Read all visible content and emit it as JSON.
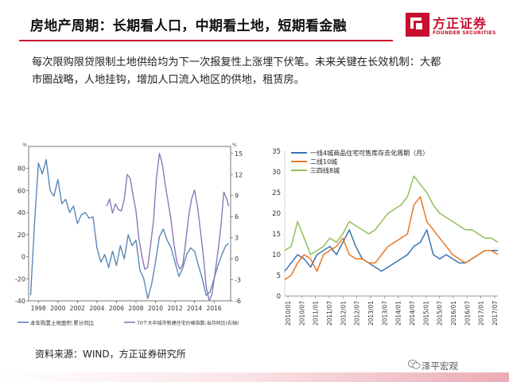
{
  "header": {
    "title": "房地产周期：长期看人口，中期看土地，短期看金融",
    "logo_name": "方正证券",
    "logo_sub": "FOUNDER SECURITIES",
    "brand_color": "#c8102e"
  },
  "body": {
    "line1": "每次限购限贷限制土地供给均为下一次报复性上涨埋下伏笔。未来关键在长效机制：大都",
    "line2": "市圈战略，人地挂钩，增加人口流入地区的供地，租赁房。"
  },
  "footer": {
    "source": "资料来源：WIND，方正证券研究所",
    "wechat": "泽平宏观"
  },
  "chart_data": [
    {
      "type": "line",
      "title": "",
      "left_unit": "%",
      "right_unit": "%",
      "x_ticks": [
        "1998",
        "2000",
        "2002",
        "2004",
        "2006",
        "2008",
        "2010",
        "2012",
        "2014",
        "2016"
      ],
      "ylim_left": [
        -40,
        100
      ],
      "yticks_left": [
        "80",
        "60",
        "40",
        "20",
        "0",
        "-20",
        "-40"
      ],
      "ylim_right": [
        -6,
        16
      ],
      "yticks_right": [
        "15",
        "12",
        "9",
        "6",
        "3",
        "0",
        "-3",
        "-6"
      ],
      "series": [
        {
          "name": "本年购置土地面积:累计同比",
          "axis": "left",
          "color": "#5b86b8",
          "x": [
            1997.2,
            1997.6,
            1998.0,
            1998.4,
            1998.8,
            1999.2,
            1999.6,
            2000.0,
            2000.4,
            2000.8,
            2001.2,
            2001.6,
            2002.0,
            2002.4,
            2002.8,
            2003.2,
            2003.6,
            2004.0,
            2004.4,
            2004.8,
            2005.2,
            2005.6,
            2006.0,
            2006.4,
            2006.8,
            2007.2,
            2007.6,
            2008.0,
            2008.4,
            2008.8,
            2009.2,
            2009.6,
            2010.0,
            2010.4,
            2010.8,
            2011.2,
            2011.6,
            2012.0,
            2012.4,
            2012.8,
            2013.2,
            2013.6,
            2014.0,
            2014.4,
            2014.8,
            2015.2,
            2015.6,
            2016.0,
            2016.4,
            2016.8,
            2017.2,
            2017.5
          ],
          "values": [
            -35,
            30,
            85,
            75,
            88,
            60,
            55,
            70,
            48,
            52,
            40,
            46,
            30,
            38,
            40,
            35,
            36,
            8,
            -5,
            2,
            -10,
            5,
            -8,
            10,
            -2,
            20,
            10,
            15,
            -12,
            -20,
            -38,
            -25,
            -5,
            18,
            25,
            15,
            8,
            -5,
            -18,
            -10,
            2,
            8,
            5,
            -8,
            -20,
            -35,
            -32,
            -20,
            -8,
            2,
            10,
            12
          ]
        },
        {
          "name": "70个大中城市新建住宅价格指数:当月同比(右轴)",
          "axis": "right",
          "color": "#8e78b8",
          "x": [
            2005.0,
            2005.3,
            2005.6,
            2005.9,
            2006.2,
            2006.5,
            2006.8,
            2007.1,
            2007.4,
            2007.7,
            2008.0,
            2008.3,
            2008.6,
            2008.9,
            2009.2,
            2009.5,
            2009.8,
            2010.1,
            2010.4,
            2010.7,
            2011.0,
            2011.3,
            2011.6,
            2011.9,
            2012.2,
            2012.5,
            2012.8,
            2013.1,
            2013.4,
            2013.7,
            2014.0,
            2014.3,
            2014.6,
            2014.9,
            2015.2,
            2015.5,
            2015.8,
            2016.1,
            2016.4,
            2016.7,
            2017.0,
            2017.3,
            2017.5
          ],
          "values": [
            7.5,
            8.5,
            6.5,
            7.8,
            7.0,
            6.8,
            8.5,
            12.0,
            11.5,
            9.0,
            6.8,
            2.8,
            0.5,
            -1.5,
            -1.2,
            2.0,
            5.5,
            11.5,
            15.0,
            13.5,
            10.5,
            8.0,
            5.5,
            2.0,
            -0.5,
            -1.5,
            -0.8,
            2.5,
            6.0,
            8.5,
            9.8,
            7.5,
            4.0,
            0.5,
            -4.0,
            -6.0,
            -5.0,
            -2.0,
            1.0,
            4.5,
            9.5,
            8.5,
            7.5
          ]
        }
      ]
    },
    {
      "type": "line",
      "title": "",
      "ylim": [
        0,
        35
      ],
      "yticks": [
        "35",
        "30",
        "25",
        "20",
        "15",
        "10",
        "5",
        "0"
      ],
      "x_ticks": [
        "2010/01",
        "2010/07",
        "2011/01",
        "2011/07",
        "2012/01",
        "2012/07",
        "2013/01",
        "2013/07",
        "2014/01",
        "2014/07",
        "2015/01",
        "2015/07",
        "2016/01",
        "2016/07",
        "2017/01",
        "2017/07"
      ],
      "series": [
        {
          "name": "一线4城商品住宅可售库存去化周期（月）",
          "color": "#3b74b0",
          "values": [
            6,
            8,
            10,
            9,
            7,
            10,
            11,
            12,
            10,
            13,
            16,
            12,
            9,
            8,
            7,
            6,
            7,
            8,
            9,
            10,
            12,
            13,
            16,
            10,
            9,
            10,
            9,
            8,
            8,
            9,
            10,
            11,
            11,
            11
          ]
        },
        {
          "name": "二线10城",
          "color": "#e87722",
          "values": [
            4,
            5,
            8,
            10,
            9,
            6,
            10,
            11,
            12,
            14,
            10,
            9,
            9,
            8,
            8,
            10,
            12,
            13,
            14,
            15,
            22,
            24,
            18,
            16,
            14,
            12,
            10,
            9,
            8,
            9,
            10,
            11,
            11,
            10
          ]
        },
        {
          "name": "三四线8城",
          "color": "#8fbf5a",
          "values": [
            11,
            12,
            18,
            14,
            10,
            11,
            12,
            14,
            13,
            15,
            18,
            17,
            16,
            15,
            16,
            18,
            20,
            21,
            22,
            24,
            29,
            27,
            25,
            22,
            20,
            19,
            18,
            17,
            16,
            16,
            15,
            14,
            14,
            13
          ]
        }
      ]
    }
  ]
}
